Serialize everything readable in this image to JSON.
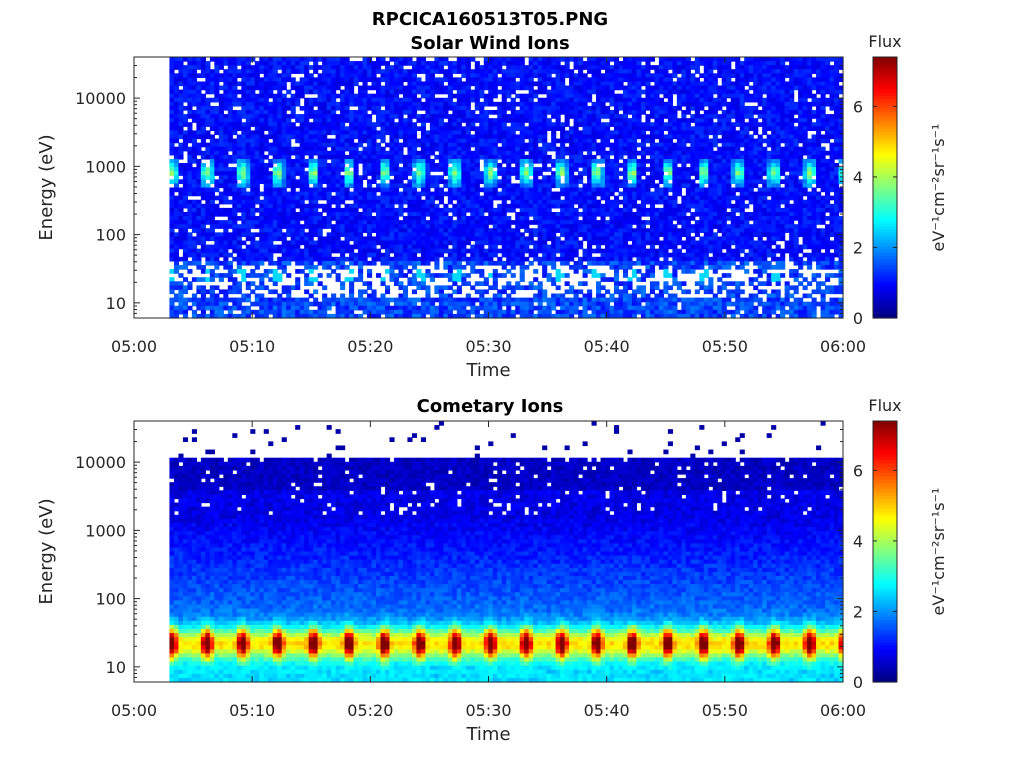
{
  "figure_title": "RPCICA160513T05.PNG",
  "colorbar_flux_label": "Flux",
  "colorbar_unit_label": "eV⁻¹cm⁻²sr⁻¹s⁻¹",
  "chart_data": [
    {
      "type": "heatmap",
      "title": "Solar Wind Ions",
      "xlabel": "Time",
      "ylabel": "Energy (eV)",
      "x_ticks": [
        "05:00",
        "05:10",
        "05:20",
        "05:30",
        "05:40",
        "05:50",
        "06:00"
      ],
      "xlim": [
        "05:00",
        "06:00"
      ],
      "data_start": "05:03",
      "y_scale": "log",
      "y_ticks": [
        10,
        100,
        1000,
        10000
      ],
      "ylim": [
        6,
        40000
      ],
      "colorbar": {
        "label": "Flux",
        "range": [
          0,
          7.4
        ],
        "ticks": [
          0,
          2,
          4,
          6
        ],
        "colormap": "jet"
      },
      "features": [
        {
          "name": "solar wind beam",
          "energy_eV": 800,
          "peak_flux": 3.5,
          "pulse_period_min": 3.0
        },
        {
          "name": "low energy band",
          "energy_eV": 25,
          "peak_flux": 2.5
        }
      ]
    },
    {
      "type": "heatmap",
      "title": "Cometary Ions",
      "xlabel": "Time",
      "ylabel": "Energy (eV)",
      "x_ticks": [
        "05:00",
        "05:10",
        "05:20",
        "05:30",
        "05:40",
        "05:50",
        "06:00"
      ],
      "xlim": [
        "05:00",
        "06:00"
      ],
      "data_start": "05:03",
      "y_scale": "log",
      "y_ticks": [
        10,
        100,
        1000,
        10000
      ],
      "ylim": [
        6,
        40000
      ],
      "colorbar": {
        "label": "Flux",
        "range": [
          0,
          7.4
        ],
        "ticks": [
          0,
          2,
          4,
          6
        ],
        "colormap": "jet"
      },
      "features": [
        {
          "name": "cometary ion band",
          "energy_eV": 22,
          "peak_flux": 6.5,
          "pulse_period_min": 3.0
        },
        {
          "name": "upper cutoff",
          "energy_eV": 10000
        }
      ]
    }
  ]
}
